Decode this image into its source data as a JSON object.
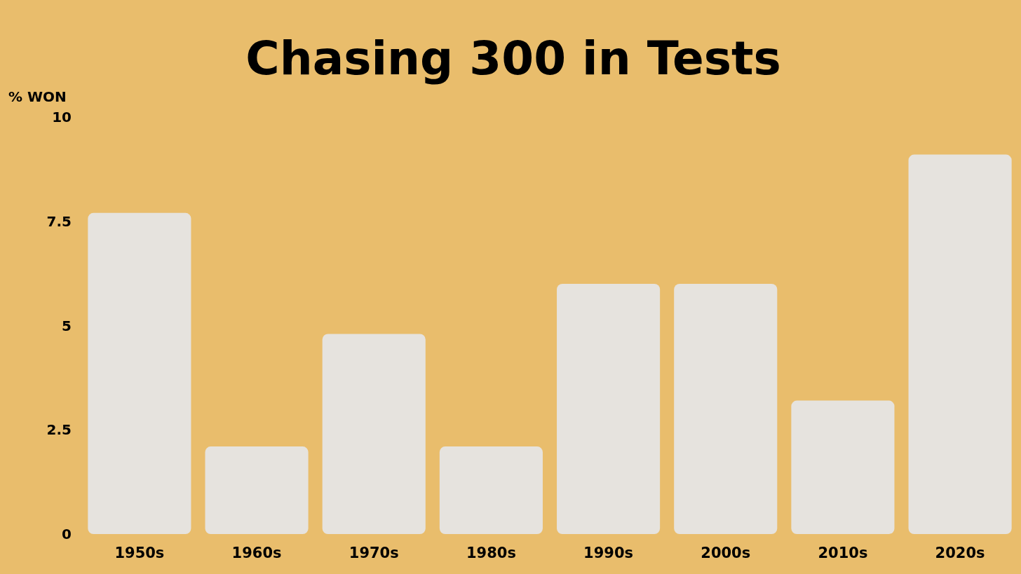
{
  "chart_data": {
    "type": "bar",
    "title": "Chasing 300 in Tests",
    "ylabel": "% WON",
    "categories": [
      "1950s",
      "1960s",
      "1970s",
      "1980s",
      "1990s",
      "2000s",
      "2010s",
      "2020s"
    ],
    "values": [
      7.7,
      2.1,
      4.8,
      2.1,
      6.0,
      6.0,
      3.2,
      9.1
    ],
    "color": "#e6e3de",
    "ylim": [
      0,
      10
    ],
    "yticks": [
      0,
      2.5,
      5,
      7.5,
      10
    ],
    "grid": false
  }
}
